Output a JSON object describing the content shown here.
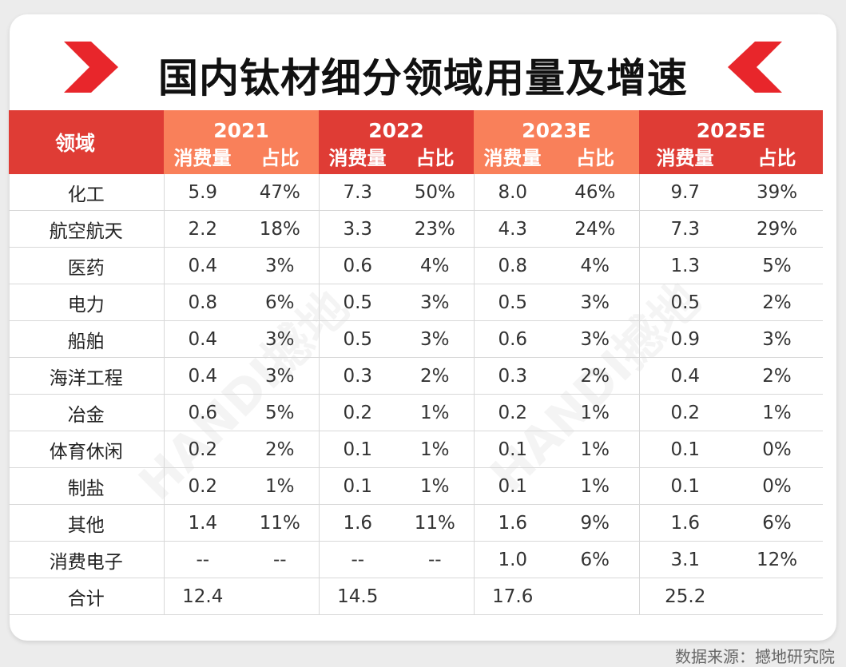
{
  "chart_data": {
    "type": "table",
    "title": "国内钛材细分领域用量及增速",
    "area_header": "领域",
    "periods": [
      "2021",
      "2022",
      "2023E",
      "2025E"
    ],
    "sub_headers": [
      "消费量",
      "占比"
    ],
    "rows": [
      {
        "area": "化工",
        "cells": [
          "5.9",
          "47%",
          "7.3",
          "50%",
          "8.0",
          "46%",
          "9.7",
          "39%"
        ]
      },
      {
        "area": "航空航天",
        "cells": [
          "2.2",
          "18%",
          "3.3",
          "23%",
          "4.3",
          "24%",
          "7.3",
          "29%"
        ]
      },
      {
        "area": "医药",
        "cells": [
          "0.4",
          "3%",
          "0.6",
          "4%",
          "0.8",
          "4%",
          "1.3",
          "5%"
        ]
      },
      {
        "area": "电力",
        "cells": [
          "0.8",
          "6%",
          "0.5",
          "3%",
          "0.5",
          "3%",
          "0.5",
          "2%"
        ]
      },
      {
        "area": "船舶",
        "cells": [
          "0.4",
          "3%",
          "0.5",
          "3%",
          "0.6",
          "3%",
          "0.9",
          "3%"
        ]
      },
      {
        "area": "海洋工程",
        "cells": [
          "0.4",
          "3%",
          "0.3",
          "2%",
          "0.3",
          "2%",
          "0.4",
          "2%"
        ]
      },
      {
        "area": "冶金",
        "cells": [
          "0.6",
          "5%",
          "0.2",
          "1%",
          "0.2",
          "1%",
          "0.2",
          "1%"
        ]
      },
      {
        "area": "体育休闲",
        "cells": [
          "0.2",
          "2%",
          "0.1",
          "1%",
          "0.1",
          "1%",
          "0.1",
          "0%"
        ]
      },
      {
        "area": "制盐",
        "cells": [
          "0.2",
          "1%",
          "0.1",
          "1%",
          "0.1",
          "1%",
          "0.1",
          "0%"
        ]
      },
      {
        "area": "其他",
        "cells": [
          "1.4",
          "11%",
          "1.6",
          "11%",
          "1.6",
          "9%",
          "1.6",
          "6%"
        ]
      },
      {
        "area": "消费电子",
        "cells": [
          "--",
          "--",
          "--",
          "--",
          "1.0",
          "6%",
          "3.1",
          "12%"
        ]
      },
      {
        "area": "合计",
        "cells": [
          "12.4",
          "",
          "14.5",
          "",
          "17.6",
          "",
          "25.2",
          ""
        ]
      }
    ]
  },
  "source": "数据来源：撼地研究院",
  "watermark": "HANDI撼地",
  "colors": {
    "header_red": "#df3c35",
    "header_orange": "#f9805a",
    "accent": "#e8262b"
  },
  "icons": {
    "title_decoration": "chevron-arrow-icon"
  }
}
